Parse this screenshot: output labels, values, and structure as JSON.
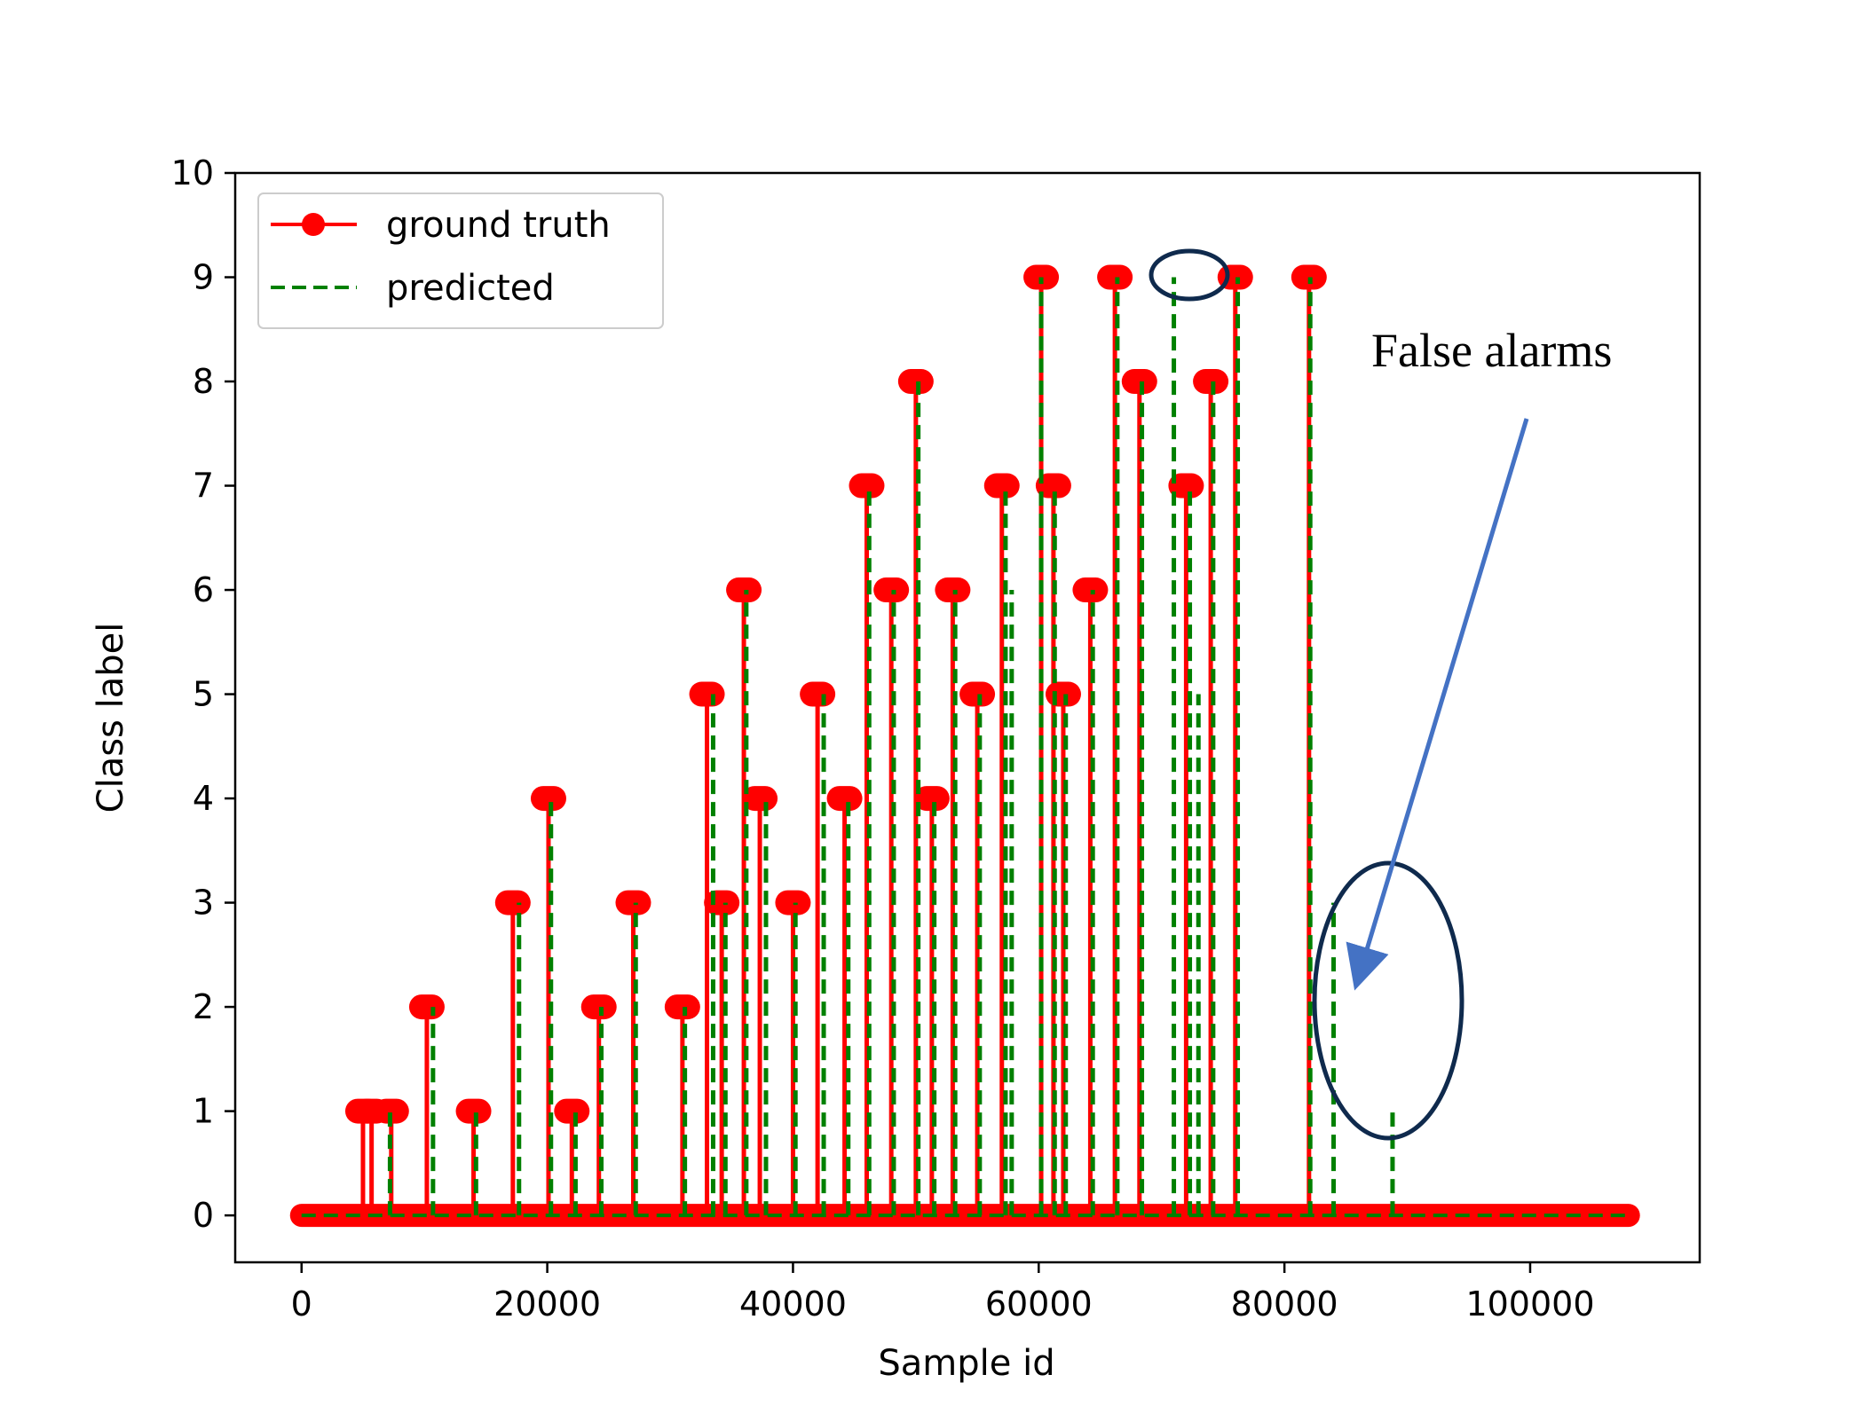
{
  "chart_data": {
    "type": "line",
    "xlabel": "Sample id",
    "ylabel": "Class label",
    "xlim": [
      -5400,
      113800
    ],
    "ylim": [
      -0.45,
      10
    ],
    "x_ticks": [
      0,
      20000,
      40000,
      60000,
      80000,
      100000
    ],
    "y_ticks": [
      0,
      1,
      2,
      3,
      4,
      5,
      6,
      7,
      8,
      9,
      10
    ],
    "x_tick_labels": [
      "0",
      "20000",
      "40000",
      "60000",
      "80000",
      "100000"
    ],
    "y_tick_labels": [
      "0",
      "1",
      "2",
      "3",
      "4",
      "5",
      "6",
      "7",
      "8",
      "9",
      "10"
    ],
    "grid": false,
    "legend_position": "top-left",
    "x_range": [
      0,
      108000
    ],
    "series": [
      {
        "name": "ground truth",
        "color": "#ff0000",
        "style": "solid-with-circle-markers",
        "events": [
          {
            "x": 5000,
            "y": 1
          },
          {
            "x": 5700,
            "y": 1
          },
          {
            "x": 7300,
            "y": 1
          },
          {
            "x": 10200,
            "y": 2
          },
          {
            "x": 14000,
            "y": 1
          },
          {
            "x": 17200,
            "y": 3
          },
          {
            "x": 20100,
            "y": 4
          },
          {
            "x": 22000,
            "y": 1
          },
          {
            "x": 24200,
            "y": 2
          },
          {
            "x": 27000,
            "y": 3
          },
          {
            "x": 31000,
            "y": 2
          },
          {
            "x": 33000,
            "y": 5
          },
          {
            "x": 34200,
            "y": 3
          },
          {
            "x": 36000,
            "y": 6
          },
          {
            "x": 37300,
            "y": 4
          },
          {
            "x": 40000,
            "y": 3
          },
          {
            "x": 42000,
            "y": 5
          },
          {
            "x": 44200,
            "y": 4
          },
          {
            "x": 46000,
            "y": 7
          },
          {
            "x": 48000,
            "y": 6
          },
          {
            "x": 50000,
            "y": 8
          },
          {
            "x": 51300,
            "y": 4
          },
          {
            "x": 53000,
            "y": 6
          },
          {
            "x": 55000,
            "y": 5
          },
          {
            "x": 57000,
            "y": 7
          },
          {
            "x": 60200,
            "y": 9
          },
          {
            "x": 61200,
            "y": 7
          },
          {
            "x": 62000,
            "y": 5
          },
          {
            "x": 64200,
            "y": 6
          },
          {
            "x": 66200,
            "y": 9
          },
          {
            "x": 68200,
            "y": 8
          },
          {
            "x": 72000,
            "y": 7
          },
          {
            "x": 74000,
            "y": 8
          },
          {
            "x": 76000,
            "y": 9
          },
          {
            "x": 82000,
            "y": 9
          }
        ]
      },
      {
        "name": "predicted",
        "color": "#008000",
        "style": "dashed",
        "events": [
          {
            "x": 7200,
            "y": 1
          },
          {
            "x": 10700,
            "y": 2
          },
          {
            "x": 14200,
            "y": 1
          },
          {
            "x": 17700,
            "y": 3
          },
          {
            "x": 20300,
            "y": 4
          },
          {
            "x": 22300,
            "y": 1
          },
          {
            "x": 24400,
            "y": 2
          },
          {
            "x": 27200,
            "y": 3
          },
          {
            "x": 31200,
            "y": 2
          },
          {
            "x": 33500,
            "y": 5
          },
          {
            "x": 34500,
            "y": 3
          },
          {
            "x": 36200,
            "y": 6
          },
          {
            "x": 37800,
            "y": 4
          },
          {
            "x": 40200,
            "y": 3
          },
          {
            "x": 42500,
            "y": 5
          },
          {
            "x": 44500,
            "y": 4
          },
          {
            "x": 46200,
            "y": 7
          },
          {
            "x": 48200,
            "y": 6
          },
          {
            "x": 50200,
            "y": 8
          },
          {
            "x": 51500,
            "y": 4
          },
          {
            "x": 53200,
            "y": 6
          },
          {
            "x": 55200,
            "y": 5
          },
          {
            "x": 57300,
            "y": 7
          },
          {
            "x": 57800,
            "y": 6
          },
          {
            "x": 60200,
            "y": 9
          },
          {
            "x": 61300,
            "y": 7
          },
          {
            "x": 62200,
            "y": 5
          },
          {
            "x": 64400,
            "y": 6
          },
          {
            "x": 66400,
            "y": 9
          },
          {
            "x": 68400,
            "y": 8
          },
          {
            "x": 71000,
            "y": 9
          },
          {
            "x": 72300,
            "y": 7
          },
          {
            "x": 73000,
            "y": 5
          },
          {
            "x": 74200,
            "y": 8
          },
          {
            "x": 76200,
            "y": 9
          },
          {
            "x": 82100,
            "y": 9
          },
          {
            "x": 84000,
            "y": 3
          },
          {
            "x": 88800,
            "y": 1
          }
        ]
      }
    ],
    "annotations": [
      {
        "text": "False alarms"
      }
    ]
  },
  "colors": {
    "ground_truth": "#ff0000",
    "predicted": "#008000",
    "circle": "#0f2a4d",
    "arrow": "#4472c4"
  }
}
